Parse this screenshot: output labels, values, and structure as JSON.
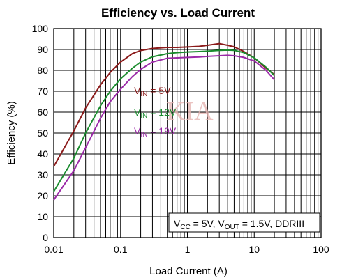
{
  "chart_data": {
    "type": "line",
    "title": "Efficiency vs. Load Current",
    "xlabel": "Load Current (A)",
    "ylabel": "Efficiency (%)",
    "xscale": "log",
    "xlim": [
      0.01,
      100
    ],
    "ylim": [
      0,
      100
    ],
    "x_ticks": [
      "0.01",
      "0.1",
      "1",
      "10",
      "100"
    ],
    "y_ticks": [
      "0",
      "10",
      "20",
      "30",
      "40",
      "50",
      "60",
      "70",
      "80",
      "90",
      "100"
    ],
    "grid": true,
    "series": [
      {
        "name": "VIN = 5V",
        "label_main": "V",
        "label_sub": "IN",
        "label_rest": " = 5V",
        "color": "#8b1a1a",
        "x": [
          0.01,
          0.02,
          0.03,
          0.05,
          0.07,
          0.1,
          0.15,
          0.2,
          0.3,
          0.5,
          0.7,
          1,
          1.5,
          2,
          3,
          4,
          5,
          7,
          10,
          15,
          20
        ],
        "y": [
          34,
          51,
          62,
          73,
          79,
          84,
          88,
          89.5,
          90.5,
          91,
          91,
          91.2,
          91.5,
          92,
          92.8,
          92,
          91.3,
          89,
          86,
          81,
          78
        ]
      },
      {
        "name": "VIN = 12V",
        "label_main": "V",
        "label_sub": "IN",
        "label_rest": " = 12V",
        "color": "#1a8c2e",
        "x": [
          0.01,
          0.02,
          0.03,
          0.05,
          0.07,
          0.1,
          0.15,
          0.2,
          0.3,
          0.5,
          0.7,
          1,
          1.5,
          2,
          3,
          4,
          5,
          7,
          10,
          15,
          20
        ],
        "y": [
          22,
          38,
          50,
          63,
          70,
          76,
          81,
          84,
          86.5,
          88,
          88.5,
          88.8,
          89,
          89.2,
          89.6,
          89.7,
          89.6,
          88.5,
          86,
          81.5,
          77.5
        ]
      },
      {
        "name": "VIN = 19V",
        "label_main": "V",
        "label_sub": "IN",
        "label_rest": " = 19V",
        "color": "#9b2aa8",
        "x": [
          0.01,
          0.02,
          0.03,
          0.05,
          0.07,
          0.1,
          0.15,
          0.2,
          0.3,
          0.5,
          0.7,
          1,
          1.5,
          2,
          3,
          4,
          5,
          7,
          10,
          15,
          20
        ],
        "y": [
          18,
          32,
          43,
          57,
          65,
          71,
          77,
          80.5,
          84,
          85.8,
          86,
          86.2,
          86.4,
          86.7,
          87,
          87.2,
          87,
          86.2,
          84.5,
          80,
          75.5
        ]
      }
    ],
    "annotation": {
      "prefix": "V",
      "sub1": "CC",
      "mid": " = 5V, V",
      "sub2": "OUT",
      "suffix": " = 1.5V, DDRIII"
    },
    "watermark": "KIA"
  }
}
